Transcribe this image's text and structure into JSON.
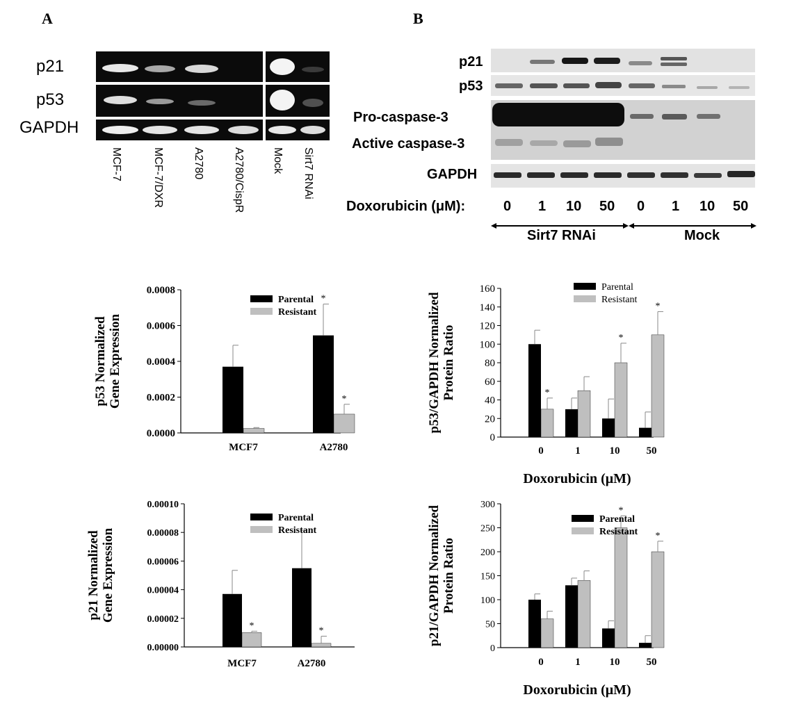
{
  "panelA": {
    "letter": "A",
    "rows": [
      "p21",
      "p53",
      "GAPDH"
    ],
    "lanes": [
      "MCF-7",
      "MCF-7/DXR",
      "A2780",
      "A2780/CispR",
      "Mock",
      "Sirt7 RNAi"
    ]
  },
  "panelB": {
    "letter": "B",
    "rows": [
      "p21",
      "p53",
      "Pro-caspase-3",
      "Active caspase-3",
      "GAPDH"
    ],
    "dox_label": "Doxorubicin (μM):",
    "doses": [
      "0",
      "1",
      "10",
      "50",
      "0",
      "1",
      "10",
      "50"
    ],
    "group_left": "Sirt7 RNAi",
    "group_right": "Mock"
  },
  "colors": {
    "parental": "#000000",
    "resistant": "#bfbfbf",
    "gel_bg": "#0a0a0a",
    "gel_band": "#f2f2f2"
  },
  "chart_data": [
    {
      "type": "bar",
      "id": "p53-gene",
      "categories": [
        "MCF7",
        "A2780"
      ],
      "series": [
        {
          "name": "Parental",
          "values": [
            0.00037,
            0.000545
          ],
          "errors": [
            0.00012,
            0.000175
          ]
        },
        {
          "name": "Resistant",
          "values": [
            2.5e-05,
            0.000105
          ],
          "errors": [
            5e-06,
            5.5e-05
          ]
        }
      ],
      "significance": [
        [
          "",
          "*"
        ],
        [
          "",
          "*"
        ]
      ],
      "ylabel_lines": [
        "p53 Normalized",
        "Gene Expression"
      ],
      "xlabel": "",
      "ylim": [
        0,
        0.0008
      ],
      "yticks": [
        "0.0000",
        "0.0002",
        "0.0004",
        "0.0006",
        "0.0008"
      ],
      "legend": "top-right"
    },
    {
      "type": "bar",
      "id": "p53-protein",
      "categories": [
        "0",
        "1",
        "10",
        "50"
      ],
      "series": [
        {
          "name": "Parental",
          "values": [
            100,
            30,
            20,
            10
          ],
          "errors": [
            15,
            12,
            21,
            17
          ]
        },
        {
          "name": "Resistant",
          "values": [
            30,
            50,
            80,
            110
          ],
          "errors": [
            12,
            15,
            21,
            25
          ]
        }
      ],
      "significance": [
        [
          "",
          "",
          "",
          ""
        ],
        [
          "*",
          "",
          "*",
          "*"
        ]
      ],
      "ylabel_lines": [
        "p53/GAPDH Normalized",
        "Protein Ratio"
      ],
      "xlabel": "Doxorubicin (μM)",
      "ylim": [
        0,
        160
      ],
      "yticks": [
        "0",
        "20",
        "40",
        "60",
        "80",
        "100",
        "120",
        "140",
        "160"
      ],
      "legend": "top-right"
    },
    {
      "type": "bar",
      "id": "p21-gene",
      "categories": [
        "MCF7",
        "A2780"
      ],
      "series": [
        {
          "name": "Parental",
          "values": [
            3.7e-05,
            5.5e-05
          ],
          "errors": [
            1.65e-05,
            2.65e-05
          ]
        },
        {
          "name": "Resistant",
          "values": [
            1e-05,
            2.5e-06
          ],
          "errors": [
            1e-06,
            5e-06
          ]
        }
      ],
      "significance": [
        [
          "",
          ""
        ],
        [
          "*",
          "*"
        ]
      ],
      "ylabel_lines": [
        "p21 Normalized",
        "Gene Expression"
      ],
      "xlabel": "",
      "ylim": [
        0,
        0.0001
      ],
      "yticks": [
        "0.00000",
        "0.00002",
        "0.00004",
        "0.00006",
        "0.00008",
        "0.00010"
      ],
      "legend": "top-right"
    },
    {
      "type": "bar",
      "id": "p21-protein",
      "categories": [
        "0",
        "1",
        "10",
        "50"
      ],
      "series": [
        {
          "name": "Parental",
          "values": [
            100,
            130,
            40,
            10
          ],
          "errors": [
            12,
            15,
            16,
            15
          ]
        },
        {
          "name": "Resistant",
          "values": [
            60,
            140,
            250,
            200
          ],
          "errors": [
            16,
            20,
            25,
            22
          ]
        }
      ],
      "significance": [
        [
          "",
          "",
          "",
          ""
        ],
        [
          "",
          "",
          "*",
          "*"
        ]
      ],
      "ylabel_lines": [
        "p21/GAPDH Normalized",
        "Protein Ratio"
      ],
      "xlabel": "Doxorubicin (μM)",
      "ylim": [
        0,
        300
      ],
      "yticks": [
        "0",
        "50",
        "100",
        "150",
        "200",
        "250",
        "300"
      ],
      "legend": "top-right"
    }
  ]
}
